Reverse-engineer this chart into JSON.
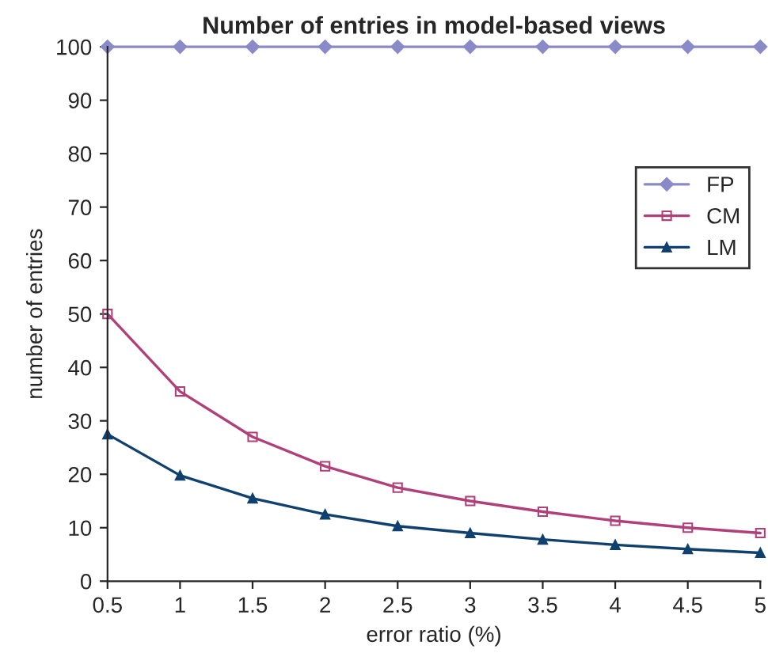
{
  "chart_data": {
    "type": "line",
    "title": "Number of entries in model-based views",
    "xlabel": "error ratio (%)",
    "ylabel": "number of entries",
    "x": [
      0.5,
      1,
      1.5,
      2,
      2.5,
      3,
      3.5,
      4,
      4.5,
      5
    ],
    "series": [
      {
        "name": "FP",
        "color": "#8a8ac8",
        "marker": "diamond",
        "values": [
          100,
          100,
          100,
          100,
          100,
          100,
          100,
          100,
          100,
          100
        ]
      },
      {
        "name": "CM",
        "color": "#b0407a",
        "marker": "square",
        "values": [
          50,
          35.5,
          27,
          21.5,
          17.5,
          15,
          13,
          11.3,
          10,
          9
        ]
      },
      {
        "name": "LM",
        "color": "#10406e",
        "marker": "triangle",
        "values": [
          27.5,
          19.8,
          15.5,
          12.5,
          10.3,
          9,
          7.8,
          6.8,
          6,
          5.3
        ]
      }
    ],
    "xlim": [
      0.5,
      5
    ],
    "xticks": [
      0.5,
      1,
      1.5,
      2,
      2.5,
      3,
      3.5,
      4,
      4.5,
      5
    ],
    "ylim": [
      0,
      100
    ],
    "yticks": [
      0,
      10,
      20,
      30,
      40,
      50,
      60,
      70,
      80,
      90,
      100
    ],
    "grid": false,
    "legend": "right",
    "line_style": "solid"
  }
}
